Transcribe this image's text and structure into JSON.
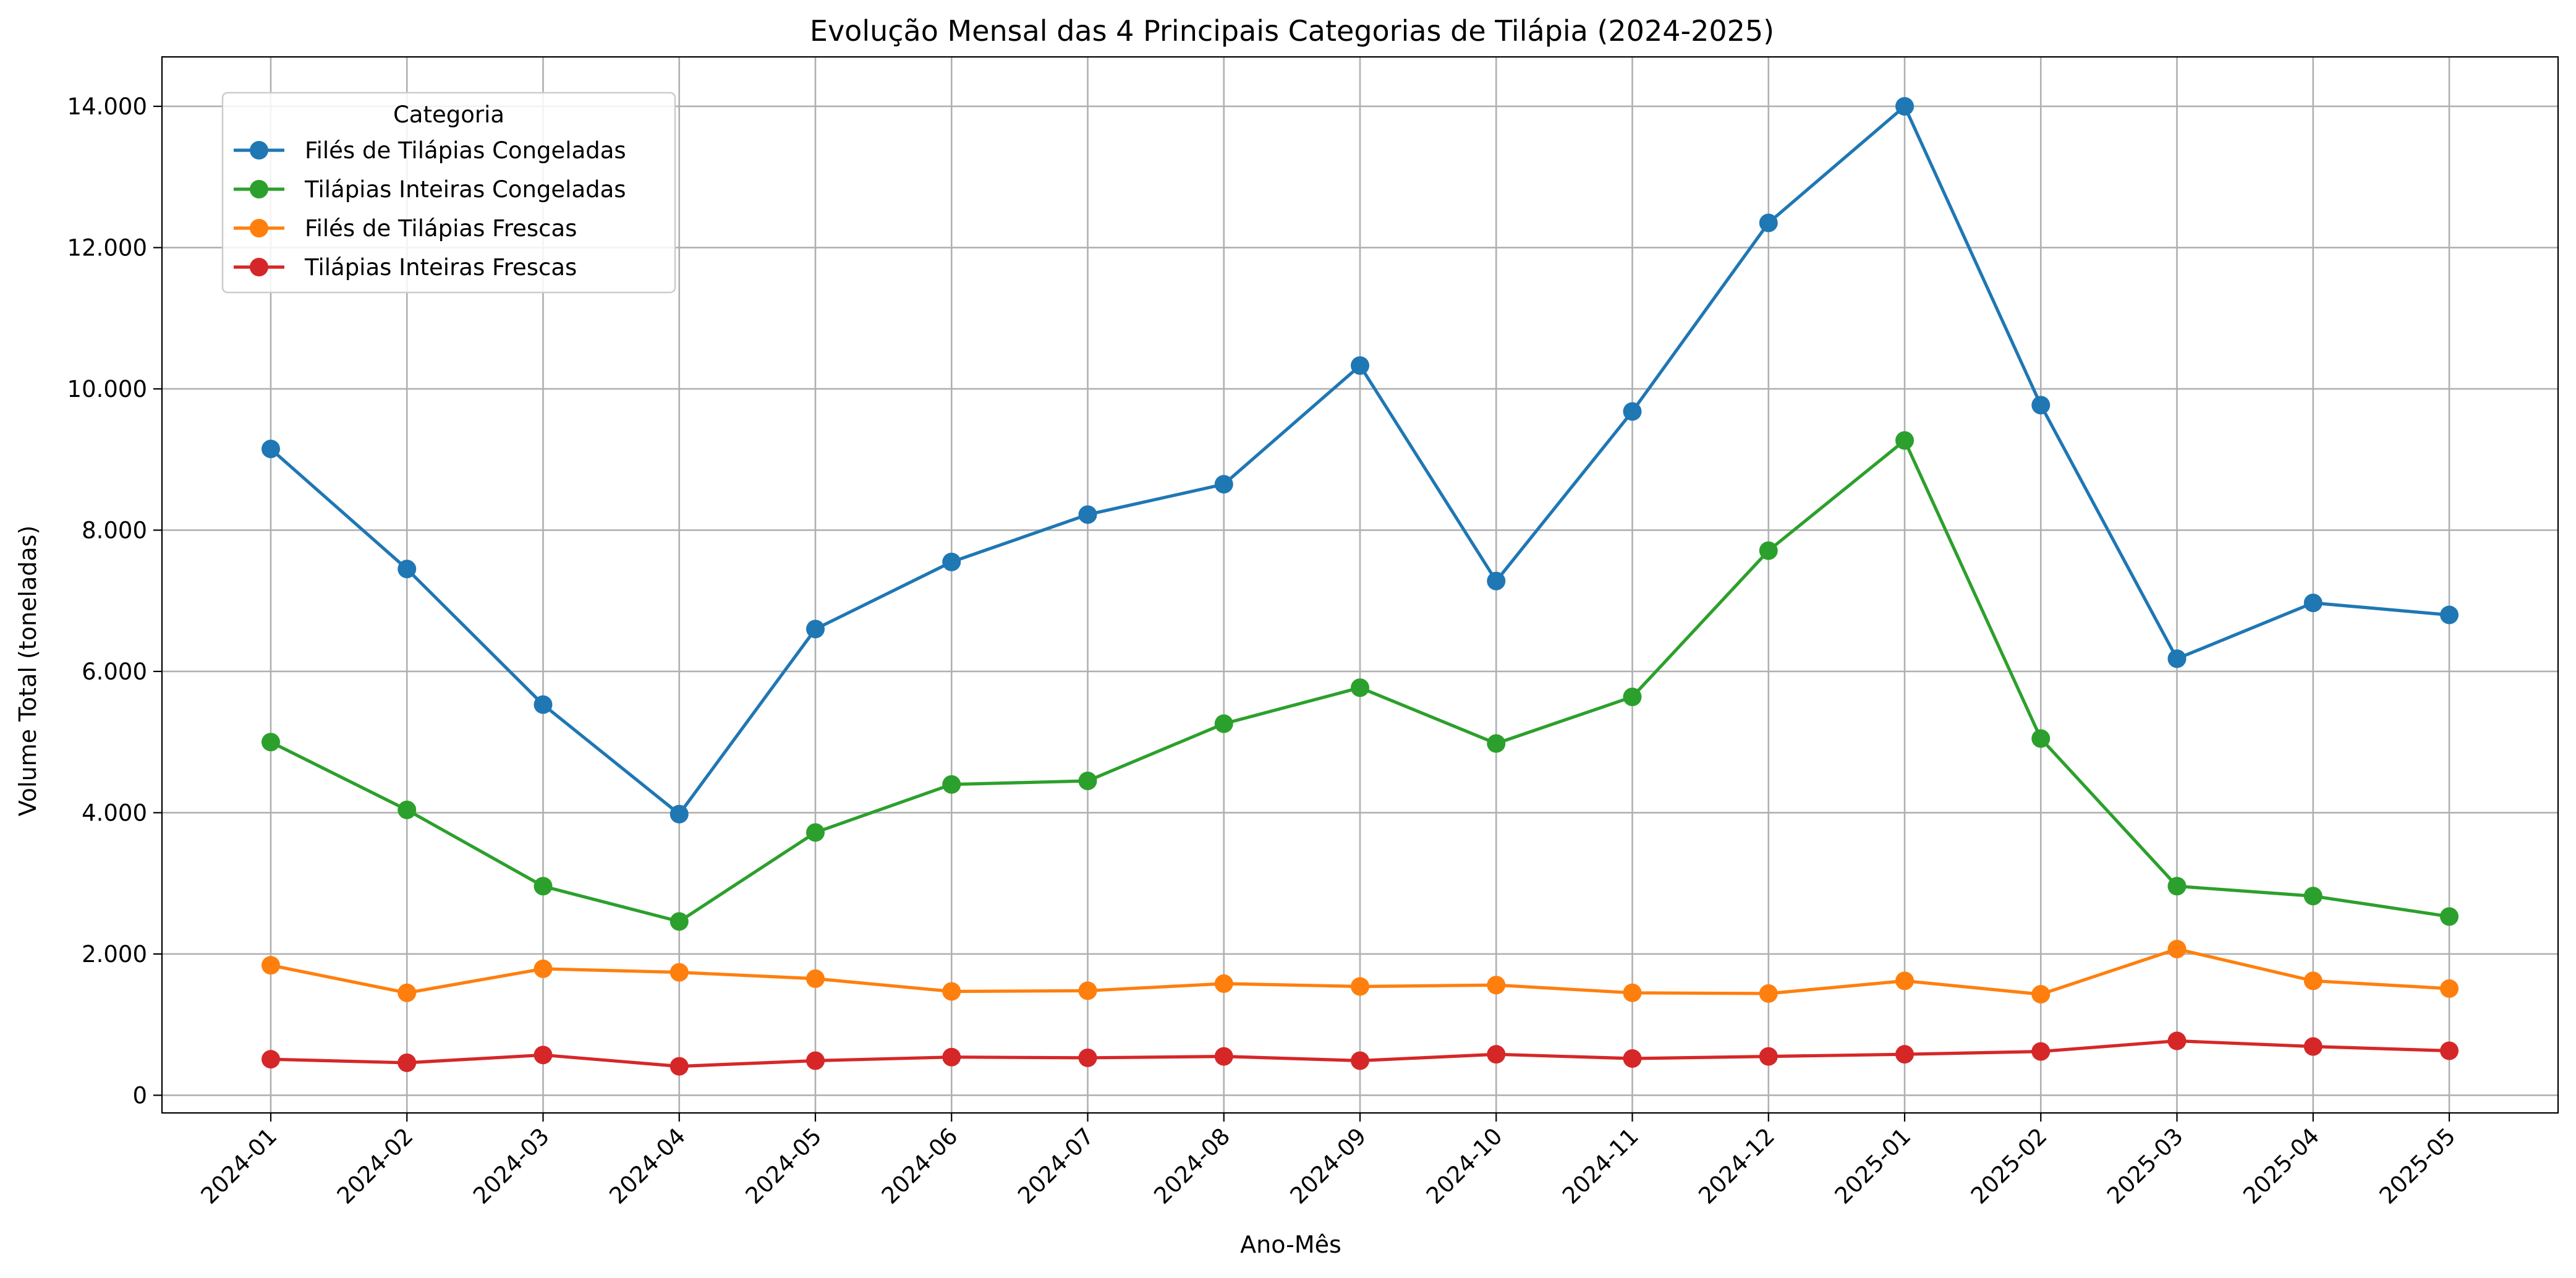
{
  "chart_data": {
    "type": "line",
    "title": "Evolução Mensal das 4 Principais Categorias de Tilápia (2024-2025)",
    "xlabel": "Ano-Mês",
    "ylabel": "Volume Total (toneladas)",
    "categories": [
      "2024-01",
      "2024-02",
      "2024-03",
      "2024-04",
      "2024-05",
      "2024-06",
      "2024-07",
      "2024-08",
      "2024-09",
      "2024-10",
      "2024-11",
      "2024-12",
      "2025-01",
      "2025-02",
      "2025-03",
      "2025-04",
      "2025-05"
    ],
    "ylim": [
      -250,
      14700
    ],
    "yticks": [
      0,
      2000,
      4000,
      6000,
      8000,
      10000,
      12000,
      14000
    ],
    "ytick_labels": [
      "0",
      "2.000",
      "4.000",
      "6.000",
      "8.000",
      "10.000",
      "12.000",
      "14.000"
    ],
    "grid": true,
    "marker": "circle",
    "legend": {
      "title": "Categoria",
      "placement": "upper-left"
    },
    "series": [
      {
        "name": "Filés de Tilápias Congeladas",
        "color": "#1f77b4",
        "values": [
          9150,
          7450,
          5530,
          3980,
          6600,
          7550,
          8220,
          8650,
          10330,
          7280,
          9680,
          12350,
          14000,
          9770,
          6180,
          6970,
          6800
        ]
      },
      {
        "name": "Tilápias Inteiras Congeladas",
        "color": "#2ca02c",
        "values": [
          5000,
          4040,
          2960,
          2460,
          3720,
          4400,
          4450,
          5260,
          5770,
          4980,
          5640,
          7710,
          9270,
          5050,
          2960,
          2820,
          2530
        ]
      },
      {
        "name": "Filés de Tilápias Frescas",
        "color": "#ff7f0e",
        "values": [
          1840,
          1450,
          1790,
          1740,
          1650,
          1470,
          1480,
          1580,
          1540,
          1560,
          1450,
          1440,
          1620,
          1430,
          2070,
          1620,
          1510
        ]
      },
      {
        "name": "Tilápias Inteiras Frescas",
        "color": "#d62728",
        "values": [
          510,
          460,
          570,
          410,
          490,
          540,
          530,
          550,
          490,
          580,
          520,
          550,
          580,
          620,
          770,
          690,
          630
        ]
      }
    ]
  }
}
